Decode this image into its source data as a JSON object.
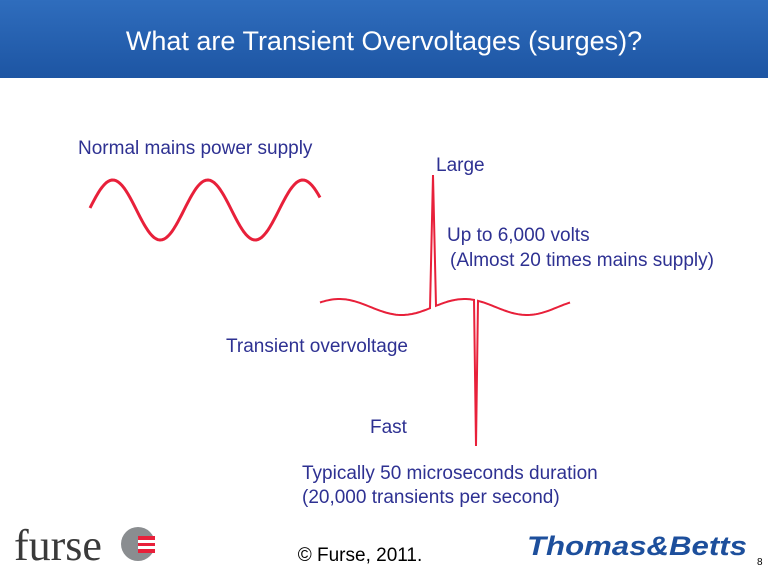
{
  "header": {
    "title": "What are Transient Overvoltages (surges)?"
  },
  "labels": {
    "normal": "Normal mains power supply",
    "large": "Large",
    "volts": "Up to 6,000 volts",
    "times": "(Almost 20 times mains supply)",
    "transient": "Transient overvoltage",
    "fast": "Fast",
    "duration": "Typically 50 microseconds duration",
    "rate": "(20,000 transients per second)"
  },
  "footer": {
    "logo_left": "furse",
    "copyright": "© Furse, 2011.",
    "logo_right": "Thomas&Betts",
    "page": "8"
  }
}
